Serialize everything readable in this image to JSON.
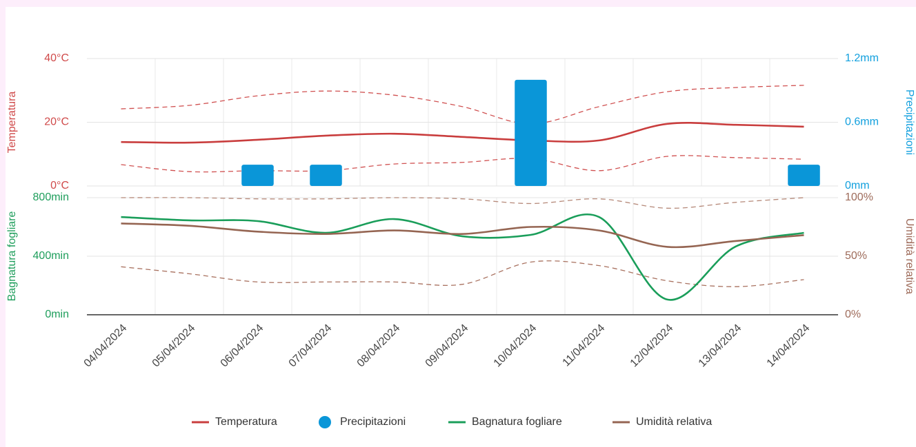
{
  "chart_data": [
    {
      "type": "combo",
      "ylabel": "Temperatura",
      "y2label": "Precipitazioni",
      "ylim": [
        0,
        40
      ],
      "yticks": [
        {
          "value": 0,
          "label": "0°C"
        },
        {
          "value": 20,
          "label": "20°C"
        },
        {
          "value": 40,
          "label": "40°C"
        }
      ],
      "y2lim": [
        0,
        1.2
      ],
      "y2ticks": [
        {
          "value": 0,
          "label": "0mm"
        },
        {
          "value": 0.6,
          "label": "0.6mm"
        },
        {
          "value": 1.2,
          "label": "1.2mm"
        }
      ],
      "ycolor": "#d04a4a",
      "y2color": "#12a0de",
      "grid": true,
      "series": [
        {
          "name": "Temperatura",
          "type": "line",
          "color": "#c93d3d",
          "values": [
            13.8,
            13.6,
            14.5,
            15.8,
            16.4,
            15.4,
            14.3,
            14.3,
            19.5,
            19.2,
            18.6
          ]
        },
        {
          "type": "line",
          "dashed": true,
          "color": "#d05050",
          "values": [
            24.2,
            25.3,
            28.3,
            29.8,
            28.5,
            24.9,
            19.5,
            24.9,
            29.6,
            30.9,
            31.6
          ]
        },
        {
          "type": "line",
          "dashed": true,
          "color": "#d05050",
          "values": [
            6.7,
            4.5,
            4.8,
            4.8,
            6.9,
            7.4,
            8.6,
            4.8,
            9.3,
            8.9,
            8.4
          ]
        },
        {
          "name": "Precipitazioni",
          "type": "bar",
          "axis": "y2",
          "color": "#0a96d8",
          "values": [
            0,
            0,
            0.2,
            0.2,
            0,
            0,
            1.0,
            0,
            0,
            0,
            0.2
          ]
        }
      ]
    },
    {
      "type": "combo",
      "ylabel": "Bagnatura fogliare",
      "y2label": "Umidità relativa",
      "categories": [
        "04/04/2024",
        "05/04/2024",
        "06/04/2024",
        "07/04/2024",
        "08/04/2024",
        "09/04/2024",
        "10/04/2024",
        "11/04/2024",
        "12/04/2024",
        "13/04/2024",
        "14/04/2024"
      ],
      "ylim": [
        0,
        800
      ],
      "yticks": [
        {
          "value": 0,
          "label": "0min"
        },
        {
          "value": 400,
          "label": "400min"
        },
        {
          "value": 800,
          "label": "800min"
        }
      ],
      "y2lim": [
        0,
        100
      ],
      "y2ticks": [
        {
          "value": 0,
          "label": "0%"
        },
        {
          "value": 50,
          "label": "50%"
        },
        {
          "value": 100,
          "label": "100%"
        }
      ],
      "ycolor": "#1f9e5c",
      "y2color": "#9e6b5a",
      "grid": true,
      "series": [
        {
          "name": "Bagnatura fogliare",
          "type": "line",
          "color": "#1a9e5a",
          "values": [
            668,
            645,
            640,
            560,
            654,
            536,
            546,
            668,
            104,
            466,
            560
          ]
        },
        {
          "name": "Umidità relativa",
          "type": "line",
          "axis": "y2",
          "color": "#956552",
          "values": [
            78,
            76,
            71,
            69,
            72,
            69,
            75,
            72,
            58,
            63,
            68
          ]
        },
        {
          "type": "line",
          "axis": "y2",
          "dashed": true,
          "color": "#b58878",
          "values": [
            100,
            100,
            99,
            99,
            100,
            99,
            95,
            99,
            91,
            96,
            100
          ]
        },
        {
          "type": "line",
          "axis": "y2",
          "dashed": true,
          "color": "#a8705e",
          "values": [
            41,
            35,
            28,
            28,
            28,
            26,
            45,
            42,
            29,
            24,
            30
          ]
        }
      ]
    }
  ]
}
